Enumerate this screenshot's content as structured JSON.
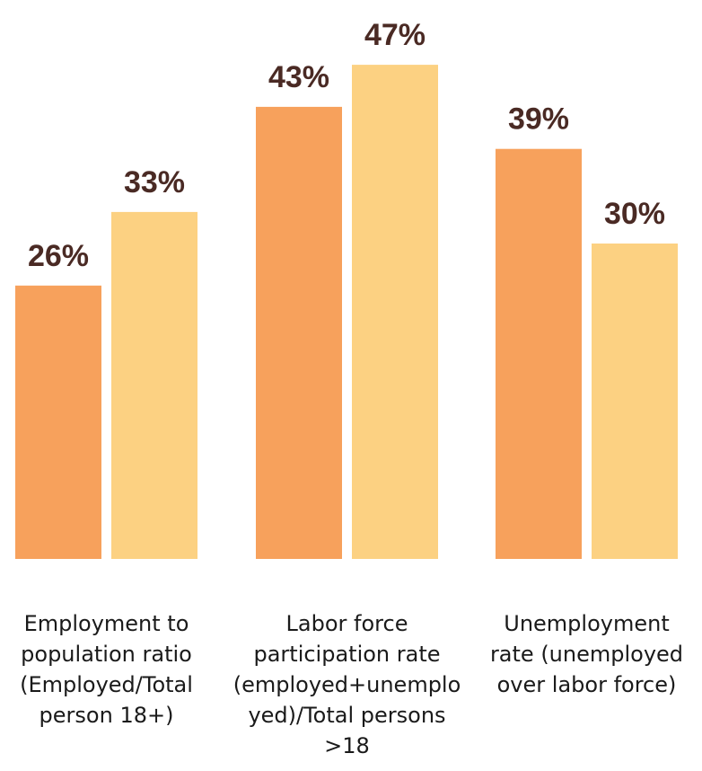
{
  "chart_data": {
    "type": "bar",
    "categories": [
      {
        "name": "Employment to population ratio (Employed/Total person 18+)",
        "lines": [
          "Employment to",
          "population ratio",
          "(Employed/Total",
          "person 18+)"
        ]
      },
      {
        "name": "Labor force participation rate (employed+unemployed)/Total persons >18",
        "lines": [
          "Labor force",
          "participation rate",
          "(employed+unemplo",
          "yed)/Total persons",
          ">18"
        ]
      },
      {
        "name": "Unemployment rate (unemployed over labor force)",
        "lines": [
          "Unemployment",
          "rate (unemployed",
          "over labor force)"
        ]
      }
    ],
    "series": [
      {
        "values": [
          26,
          43,
          39
        ],
        "labels": [
          "26%",
          "43%",
          "39%"
        ],
        "color": "#f7a15c"
      },
      {
        "values": [
          33,
          47,
          30
        ],
        "labels": [
          "33%",
          "47%",
          "30%"
        ],
        "color": "#fcd182"
      }
    ],
    "ylim": [
      0,
      50
    ],
    "grid": false,
    "legend": "none",
    "label_color": "#4a2a24"
  }
}
